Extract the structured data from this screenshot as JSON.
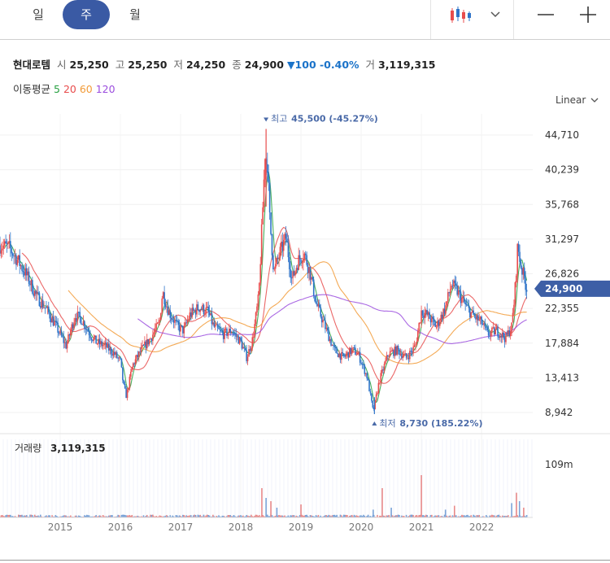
{
  "toolbar": {
    "tabs": [
      {
        "label": "일",
        "active": false
      },
      {
        "label": "주",
        "active": true
      },
      {
        "label": "월",
        "active": false
      }
    ],
    "icons": [
      "candlestick-chart-icon",
      "chevron-down-icon",
      "minus-icon",
      "plus-icon"
    ],
    "accent": "#3a5aa4"
  },
  "stock": {
    "name": "현대로템",
    "open_label": "시",
    "open": "25,250",
    "high_label": "고",
    "high": "25,250",
    "low_label": "저",
    "low": "24,250",
    "close_label": "종",
    "close": "24,900",
    "change": "▼100 -0.40%",
    "volume_label": "거",
    "volume": "3,119,315"
  },
  "moving_average": {
    "label": "이동평균",
    "periods": [
      {
        "label": "5",
        "color": "#26a040"
      },
      {
        "label": "20",
        "color": "#e84c4c"
      },
      {
        "label": "60",
        "color": "#f29b38"
      },
      {
        "label": "120",
        "color": "#9b4dde"
      }
    ]
  },
  "scale_mode": "Linear",
  "chart_data": {
    "type": "candlestick",
    "x_ticks": [
      "2015",
      "2016",
      "2017",
      "2018",
      "2019",
      "2020",
      "2021",
      "2022"
    ],
    "y_ticks": [
      "44,710",
      "40,239",
      "35,768",
      "31,297",
      "26,826",
      "22,355",
      "17,884",
      "13,413",
      "8,942"
    ],
    "y_range": [
      7000,
      47000
    ],
    "current_price": {
      "label": "24,900",
      "value": 24900,
      "color": "#3d5fa6"
    },
    "annotations": {
      "high": {
        "label": "최고",
        "value_text": "45,500 (-45.27%)",
        "value": 45500,
        "x": 2018.42
      },
      "low": {
        "label": "최저",
        "value_text": "8,730 (185.22%)",
        "value": 8730,
        "x": 2020.22
      }
    },
    "up_color": "#e84c4c",
    "down_color": "#2f74c9",
    "price_points": [
      [
        2014.0,
        30500
      ],
      [
        2014.15,
        30200
      ],
      [
        2014.3,
        28500
      ],
      [
        2014.45,
        26500
      ],
      [
        2014.6,
        24000
      ],
      [
        2014.75,
        22500
      ],
      [
        2014.9,
        20500
      ],
      [
        2015.0,
        19000
      ],
      [
        2015.1,
        17500
      ],
      [
        2015.25,
        21500
      ],
      [
        2015.35,
        21000
      ],
      [
        2015.5,
        19000
      ],
      [
        2015.6,
        18000
      ],
      [
        2015.75,
        17500
      ],
      [
        2015.9,
        16500
      ],
      [
        2016.0,
        15500
      ],
      [
        2016.05,
        12500
      ],
      [
        2016.1,
        11000
      ],
      [
        2016.2,
        15000
      ],
      [
        2016.35,
        17000
      ],
      [
        2016.5,
        18500
      ],
      [
        2016.65,
        20500
      ],
      [
        2016.7,
        24500
      ],
      [
        2016.8,
        22000
      ],
      [
        2016.95,
        20000
      ],
      [
        2017.05,
        19500
      ],
      [
        2017.15,
        21500
      ],
      [
        2017.3,
        22500
      ],
      [
        2017.45,
        22000
      ],
      [
        2017.55,
        20000
      ],
      [
        2017.7,
        19000
      ],
      [
        2017.85,
        19500
      ],
      [
        2018.0,
        18000
      ],
      [
        2018.1,
        16000
      ],
      [
        2018.2,
        18500
      ],
      [
        2018.3,
        24000
      ],
      [
        2018.38,
        38000
      ],
      [
        2018.42,
        45500
      ],
      [
        2018.48,
        34000
      ],
      [
        2018.55,
        27000
      ],
      [
        2018.65,
        29500
      ],
      [
        2018.75,
        31500
      ],
      [
        2018.85,
        26000
      ],
      [
        2018.95,
        28500
      ],
      [
        2019.05,
        29500
      ],
      [
        2019.15,
        27000
      ],
      [
        2019.25,
        23000
      ],
      [
        2019.4,
        20000
      ],
      [
        2019.55,
        17000
      ],
      [
        2019.7,
        16000
      ],
      [
        2019.85,
        17000
      ],
      [
        2019.95,
        16500
      ],
      [
        2020.1,
        13500
      ],
      [
        2020.2,
        9000
      ],
      [
        2020.3,
        13000
      ],
      [
        2020.45,
        16500
      ],
      [
        2020.6,
        17000
      ],
      [
        2020.75,
        16000
      ],
      [
        2020.9,
        17500
      ],
      [
        2021.0,
        22000
      ],
      [
        2021.1,
        21500
      ],
      [
        2021.25,
        20000
      ],
      [
        2021.4,
        22500
      ],
      [
        2021.5,
        25500
      ],
      [
        2021.6,
        24500
      ],
      [
        2021.75,
        22500
      ],
      [
        2021.85,
        21500
      ],
      [
        2022.0,
        20500
      ],
      [
        2022.1,
        19000
      ],
      [
        2022.25,
        19500
      ],
      [
        2022.4,
        18500
      ],
      [
        2022.5,
        20000
      ],
      [
        2022.55,
        24000
      ],
      [
        2022.6,
        30500
      ],
      [
        2022.65,
        28000
      ],
      [
        2022.75,
        24900
      ]
    ],
    "volume_panel": {
      "label": "거래량",
      "value": "3,119,315",
      "y_tick": "109m",
      "y_range": [
        0,
        120000000
      ],
      "spikes": [
        [
          2018.35,
          45000000
        ],
        [
          2018.42,
          30000000
        ],
        [
          2018.5,
          25000000
        ],
        [
          2018.6,
          15000000
        ],
        [
          2019.0,
          20000000
        ],
        [
          2020.2,
          12000000
        ],
        [
          2020.35,
          45000000
        ],
        [
          2020.5,
          15000000
        ],
        [
          2021.0,
          65000000
        ],
        [
          2021.4,
          12000000
        ],
        [
          2021.55,
          18000000
        ],
        [
          2022.5,
          22000000
        ],
        [
          2022.58,
          38000000
        ],
        [
          2022.63,
          25000000
        ],
        [
          2022.7,
          15000000
        ]
      ]
    }
  }
}
